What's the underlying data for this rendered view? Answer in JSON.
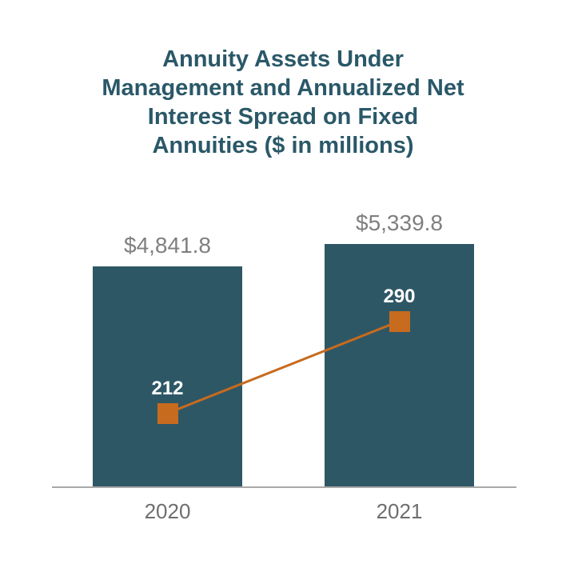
{
  "title": {
    "full": "Annuity Assets Under Management and Annualized Net Interest Spread on Fixed Annuities ($ in millions)",
    "lines": [
      "Annuity Assets Under",
      "Management and Annualized Net",
      "Interest Spread on Fixed",
      "Annuities ($ in millions)"
    ]
  },
  "colors": {
    "title": "#2A5868",
    "bar": "#2E5766",
    "line": "#C76B1E",
    "value_label": "#7F7F7F",
    "category_label": "#6E6E6E",
    "axis_line": "#A9A9A9",
    "marker_label": "#FFFFFF",
    "background": "#FFFFFF"
  },
  "chart_data": {
    "type": "bar",
    "subtype": "bar-line-combo",
    "title": "Annuity Assets Under Management and Annualized Net Interest Spread on Fixed Annuities ($ in millions)",
    "categories": [
      "2020",
      "2021"
    ],
    "series": [
      {
        "name": "Annuity Assets Under Management",
        "type": "bar",
        "values": [
          4841.8,
          5339.8
        ],
        "labels": [
          "$4,841.8",
          "$5,339.8"
        ],
        "color": "#2E5766"
      },
      {
        "name": "Annualized Net Interest Spread on Fixed Annuities",
        "type": "line",
        "marker": "square",
        "values": [
          212,
          290
        ],
        "labels": [
          "212",
          "290"
        ],
        "color": "#C76B1E"
      }
    ],
    "xlabel": "",
    "ylabel": "",
    "bar_ylim": [
      0,
      5339.8
    ],
    "grid": false,
    "legend": false
  }
}
